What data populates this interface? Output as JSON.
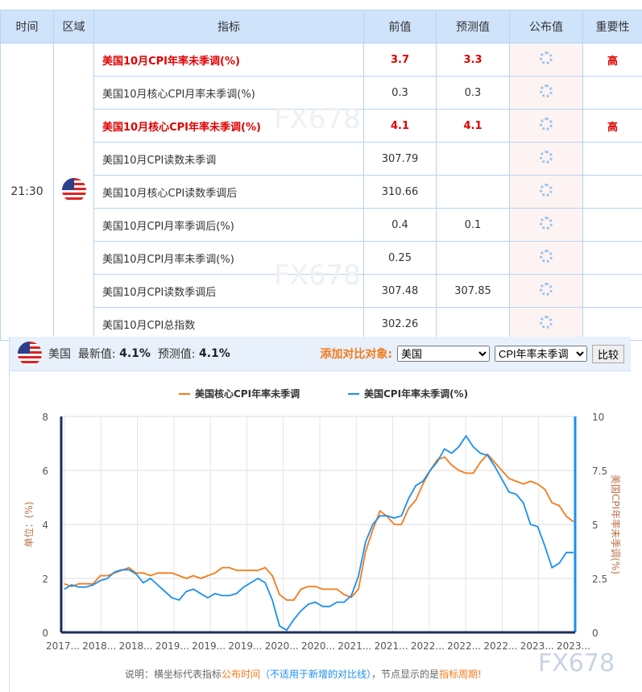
{
  "table": {
    "headers": [
      "时间",
      "区域",
      "指标",
      "前值",
      "预测值",
      "公布值",
      "重要性"
    ],
    "time": "21:30",
    "rows": [
      {
        "name": "美国10月CPI年率未季调(%)",
        "prev": "3.7",
        "fcst": "3.3",
        "imp": "高",
        "hi": true
      },
      {
        "name": "美国10月核心CPI月率未季调(%)",
        "prev": "0.3",
        "fcst": "0.3",
        "imp": "",
        "hi": false
      },
      {
        "name": "美国10月核心CPI年率未季调(%)",
        "prev": "4.1",
        "fcst": "4.1",
        "imp": "高",
        "hi": true
      },
      {
        "name": "美国10月CPI读数未季调",
        "prev": "307.79",
        "fcst": "",
        "imp": "",
        "hi": false
      },
      {
        "name": "美国10月核心CPI读数季调后",
        "prev": "310.66",
        "fcst": "",
        "imp": "",
        "hi": false
      },
      {
        "name": "美国10月CPI月率季调后(%)",
        "prev": "0.4",
        "fcst": "0.1",
        "imp": "",
        "hi": false
      },
      {
        "name": "美国10月CPI月率未季调(%)",
        "prev": "0.25",
        "fcst": "",
        "imp": "",
        "hi": false
      },
      {
        "name": "美国10月CPI读数季调后",
        "prev": "307.48",
        "fcst": "307.85",
        "imp": "",
        "hi": false
      },
      {
        "name": "美国10月CPI总指数",
        "prev": "302.26",
        "fcst": "",
        "imp": "",
        "hi": false
      }
    ]
  },
  "watermark": "FX678",
  "panel": {
    "country": "美国",
    "latest_label": "最新值:",
    "latest": "4.1%",
    "fcst_label": "预测值:",
    "fcst": "4.1%",
    "add_label": "添加对比对象:",
    "select1": "美国",
    "select2": "CPI年率未季调",
    "compare": "比较"
  },
  "note": {
    "a": "说明：横坐标代表指标",
    "b": "公布时间",
    "c": "（不适用于新增的对比线）",
    "d": "，节点显示的是",
    "e": "指标周期!"
  },
  "chart_data": {
    "type": "line",
    "ylabel": "单位：(%)",
    "y2label": "美国CPI年率未季调(%)",
    "ylim": [
      0,
      8
    ],
    "y2lim": [
      0,
      10
    ],
    "yticks": [
      "0",
      "2",
      "4",
      "6",
      "8"
    ],
    "y2ticks": [
      "0",
      "2.5",
      "5",
      "7.5",
      "10"
    ],
    "xticks": [
      "2017...",
      "2018...",
      "2018...",
      "2019...",
      "2019...",
      "2019...",
      "2020...",
      "2020...",
      "2021...",
      "2021...",
      "2022...",
      "2022...",
      "2022...",
      "2023...",
      "2023..."
    ],
    "series": [
      {
        "name": "美国核心CPI年率未季调",
        "color": "#f57a1a",
        "axis": "left",
        "values": [
          1.8,
          1.7,
          1.8,
          1.8,
          1.8,
          2.1,
          2.1,
          2.2,
          2.3,
          2.4,
          2.2,
          2.2,
          2.1,
          2.2,
          2.2,
          2.2,
          2.1,
          2.0,
          2.1,
          2.0,
          2.1,
          2.2,
          2.4,
          2.4,
          2.3,
          2.3,
          2.3,
          2.3,
          2.4,
          2.1,
          1.4,
          1.2,
          1.2,
          1.6,
          1.7,
          1.7,
          1.6,
          1.6,
          1.6,
          1.4,
          1.3,
          1.6,
          3.0,
          3.8,
          4.5,
          4.3,
          4.0,
          4.0,
          4.6,
          4.9,
          5.5,
          6.0,
          6.4,
          6.5,
          6.2,
          6.0,
          5.9,
          5.9,
          6.3,
          6.6,
          6.3,
          6.0,
          5.7,
          5.6,
          5.5,
          5.6,
          5.5,
          5.3,
          4.8,
          4.7,
          4.3,
          4.1
        ]
      },
      {
        "name": "美国CPI年率未季调(%)",
        "color": "#1a8ff0",
        "axis": "right",
        "values": [
          2.0,
          2.2,
          2.1,
          2.1,
          2.2,
          2.4,
          2.5,
          2.8,
          2.9,
          2.9,
          2.7,
          2.3,
          2.5,
          2.2,
          1.9,
          1.6,
          1.5,
          1.9,
          2.0,
          1.8,
          1.6,
          1.8,
          1.7,
          1.7,
          1.8,
          2.1,
          2.3,
          2.5,
          2.3,
          1.5,
          0.3,
          0.1,
          0.6,
          1.0,
          1.3,
          1.4,
          1.2,
          1.2,
          1.4,
          1.4,
          1.7,
          2.6,
          4.2,
          5.0,
          5.4,
          5.4,
          5.3,
          5.4,
          6.2,
          6.8,
          7.0,
          7.5,
          7.9,
          8.5,
          8.3,
          8.6,
          9.1,
          8.6,
          8.3,
          8.2,
          7.7,
          7.1,
          6.5,
          6.4,
          6.0,
          5.0,
          4.9,
          4.0,
          3.0,
          3.2,
          3.7,
          3.7
        ]
      }
    ]
  }
}
